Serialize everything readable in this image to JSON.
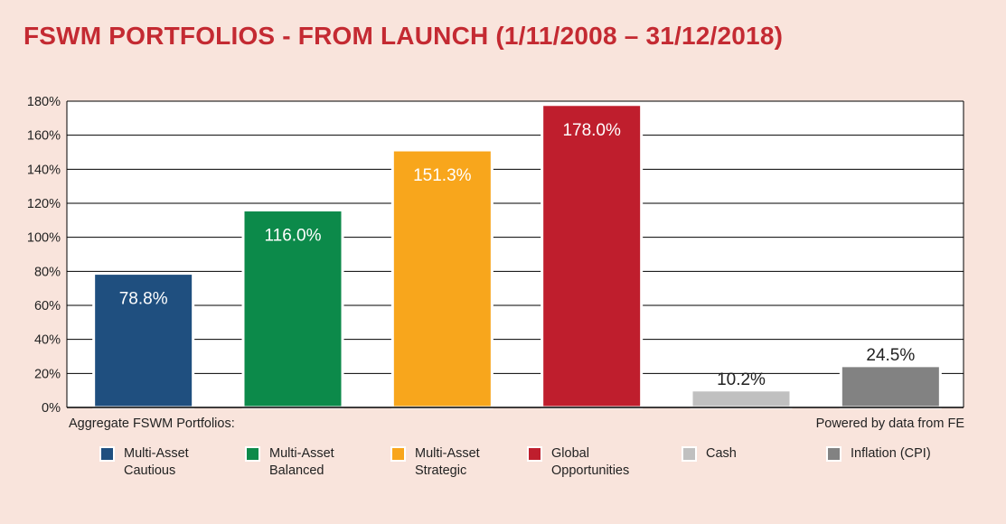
{
  "title": "FSWM PORTFOLIOS - FROM LAUNCH (1/11/2008 – 31/12/2018)",
  "footer_left": "Aggregate FSWM Portfolios:",
  "footer_right": "Powered by data from FE",
  "legend": [
    {
      "line1": "Multi-Asset",
      "line2": "Cautious",
      "color": "#1f4f7f"
    },
    {
      "line1": "Multi-Asset",
      "line2": "Balanced",
      "color": "#0c8a4a"
    },
    {
      "line1": "Multi-Asset",
      "line2": "Strategic",
      "color": "#f8a61c"
    },
    {
      "line1": "Global",
      "line2": "Opportunities",
      "color": "#bf1e2d"
    },
    {
      "line1": "Cash",
      "line2": "",
      "color": "#c0c0c0"
    },
    {
      "line1": "Inflation (CPI)",
      "line2": "",
      "color": "#828282"
    }
  ],
  "chart_data": {
    "type": "bar",
    "title": "FSWM PORTFOLIOS - FROM LAUNCH (1/11/2008 – 31/12/2018)",
    "categories": [
      "Multi-Asset Cautious",
      "Multi-Asset Balanced",
      "Multi-Asset Strategic",
      "Global Opportunities",
      "Cash",
      "Inflation (CPI)"
    ],
    "values": [
      78.8,
      116.0,
      151.3,
      178.0,
      10.2,
      24.5
    ],
    "labels": [
      "78.8%",
      "116.0%",
      "151.3%",
      "178.0%",
      "10.2%",
      "24.5%"
    ],
    "colors": [
      "#1f4f7f",
      "#0c8a4a",
      "#f8a61c",
      "#bf1e2d",
      "#c0c0c0",
      "#828282"
    ],
    "label_inside": [
      true,
      true,
      true,
      true,
      false,
      false
    ],
    "ylim": [
      0,
      180
    ],
    "yticks": [
      0,
      20,
      40,
      60,
      80,
      100,
      120,
      140,
      160,
      180
    ],
    "ytick_labels": [
      "0%",
      "20%",
      "40%",
      "60%",
      "80%",
      "100%",
      "120%",
      "140%",
      "160%",
      "180%"
    ],
    "xlabel": "",
    "ylabel": "",
    "grid": true,
    "legend_position": "bottom"
  }
}
